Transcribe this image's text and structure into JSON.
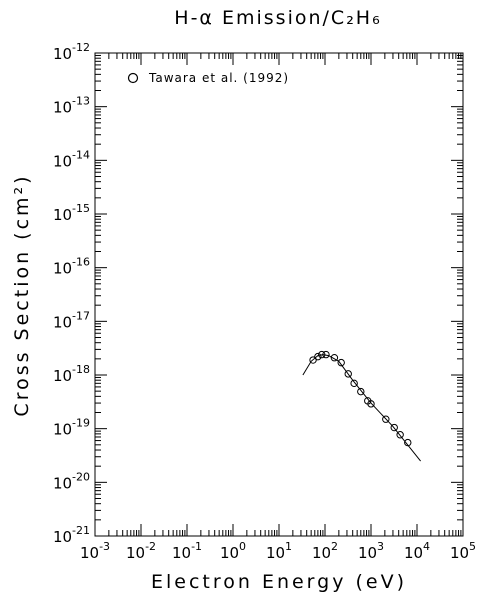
{
  "chart_data": {
    "type": "scatter",
    "title": "H-α Emission/C₂H₆",
    "x_label": "Electron Energy (eV)",
    "y_label": "Cross Section (cm²)",
    "xlog": true,
    "ylog": true,
    "xlim": [
      0.001,
      100000
    ],
    "ylim": [
      1e-21,
      1e-12
    ],
    "xticks": [
      {
        "value": 0.001,
        "label": "10",
        "sup": "-3"
      },
      {
        "value": 0.01,
        "label": "10",
        "sup": "-2"
      },
      {
        "value": 0.1,
        "label": "10",
        "sup": "-1"
      },
      {
        "value": 1,
        "label": "10",
        "sup": "0"
      },
      {
        "value": 10,
        "label": "10",
        "sup": "1"
      },
      {
        "value": 100,
        "label": "10",
        "sup": "2"
      },
      {
        "value": 1000,
        "label": "10",
        "sup": "3"
      },
      {
        "value": 10000,
        "label": "10",
        "sup": "4"
      },
      {
        "value": 100000,
        "label": "10",
        "sup": "5"
      }
    ],
    "yticks": [
      {
        "value": 1e-21,
        "label": "10",
        "sup": "-21"
      },
      {
        "value": 1e-20,
        "label": "10",
        "sup": "-20"
      },
      {
        "value": 1e-19,
        "label": "10",
        "sup": "-19"
      },
      {
        "value": 1e-18,
        "label": "10",
        "sup": "-18"
      },
      {
        "value": 1e-17,
        "label": "10",
        "sup": "-17"
      },
      {
        "value": 1e-16,
        "label": "10",
        "sup": "-16"
      },
      {
        "value": 1e-15,
        "label": "10",
        "sup": "-15"
      },
      {
        "value": 1e-14,
        "label": "10",
        "sup": "-14"
      },
      {
        "value": 1e-13,
        "label": "10",
        "sup": "-13"
      },
      {
        "value": 1e-12,
        "label": "10",
        "sup": "-12"
      }
    ],
    "legend": "top-left",
    "series": [
      {
        "name": "Tawara et al. (1992)",
        "color": "#000000",
        "marker": "circle",
        "x": [
          55,
          70,
          85,
          105,
          160,
          225,
          320,
          430,
          600,
          850,
          1000,
          2100,
          3200,
          4300,
          6300
        ],
        "values": [
          1.9e-18,
          2.2e-18,
          2.4e-18,
          2.4e-18,
          2.1e-18,
          1.7e-18,
          1.05e-18,
          7e-19,
          4.9e-19,
          3.3e-19,
          2.9e-19,
          1.5e-19,
          1.05e-19,
          7.7e-20,
          5.5e-20
        ]
      },
      {
        "color": "#000000",
        "marker": "line",
        "x": [
          33,
          50,
          70,
          90,
          120,
          200,
          400,
          1000,
          3000,
          12000
        ],
        "values": [
          1e-18,
          1.8e-18,
          2.3e-18,
          2.4e-18,
          2.3e-18,
          1.8e-18,
          8e-19,
          3e-19,
          1.1e-19,
          2.5e-20
        ]
      }
    ]
  }
}
